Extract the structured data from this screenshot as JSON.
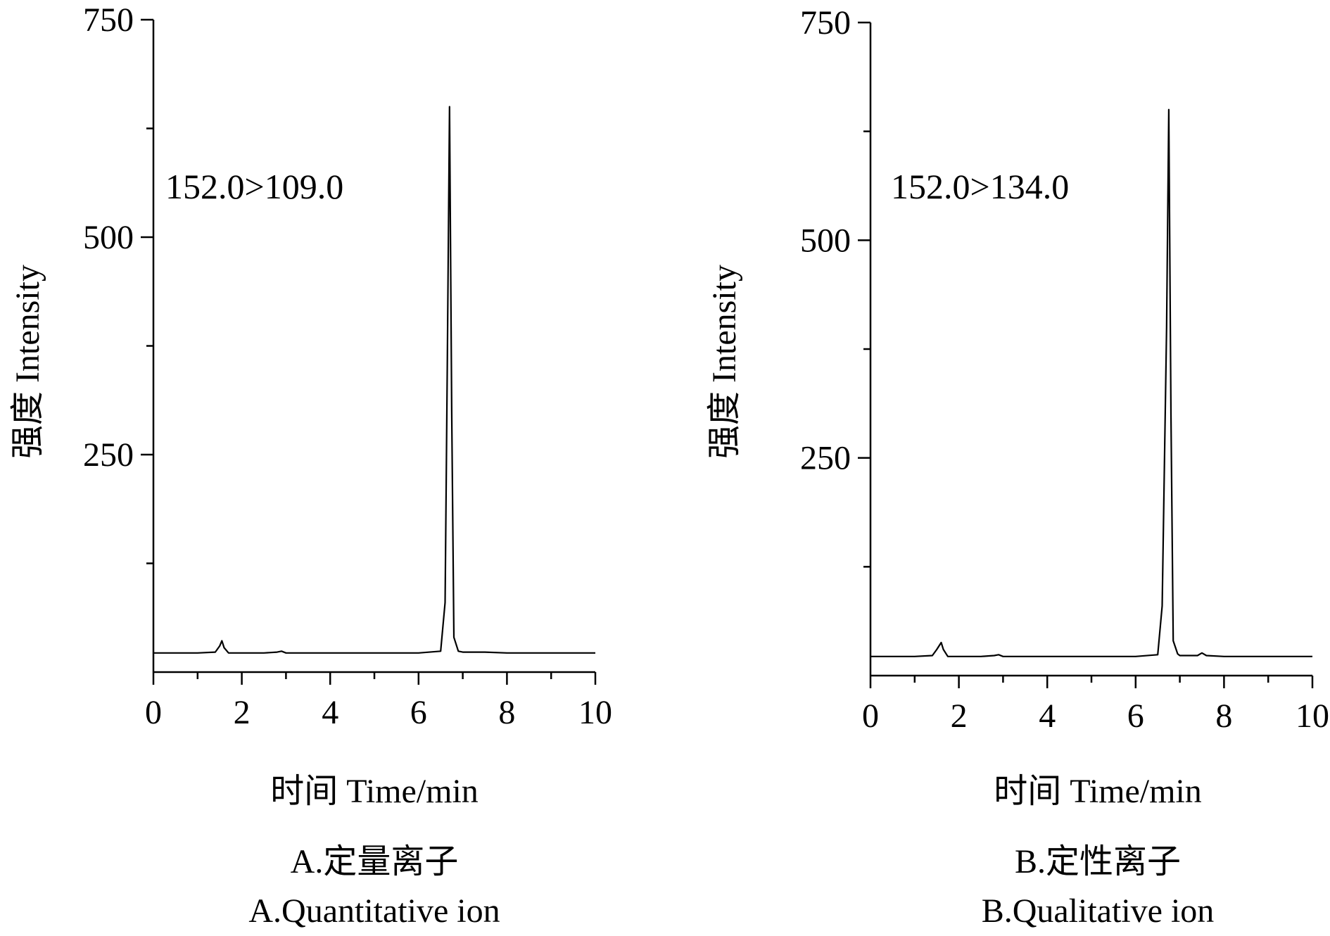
{
  "chart_data": [
    {
      "type": "line",
      "panel": "A",
      "ion_label": "152.0>109.0",
      "xlabel": "时间 Time/min",
      "ylabel": "强度 Intensity",
      "caption_cn": "A.定量离子",
      "caption_en": "A.Quantitative ion",
      "xlim": [
        0,
        10
      ],
      "ylim": [
        0,
        750
      ],
      "x_ticks": [
        0,
        2,
        4,
        6,
        8,
        10
      ],
      "y_ticks": [
        250,
        500,
        750
      ],
      "grid": false,
      "series": [
        {
          "x": [
            0,
            0.5,
            1.0,
            1.4,
            1.5,
            1.55,
            1.6,
            1.7,
            2.0,
            2.5,
            2.8,
            2.9,
            3.0,
            3.5,
            4.0,
            5.0,
            6.0,
            6.5,
            6.6,
            6.65,
            6.7,
            6.75,
            6.8,
            6.9,
            7.0,
            7.5,
            8.0,
            9.0,
            10.0
          ],
          "y": [
            22,
            22,
            22,
            23,
            30,
            36,
            28,
            22,
            22,
            22,
            23,
            24,
            22,
            22,
            22,
            22,
            22,
            24,
            80,
            350,
            650,
            300,
            40,
            24,
            23,
            23,
            22,
            22,
            22
          ]
        }
      ]
    },
    {
      "type": "line",
      "panel": "B",
      "ion_label": "152.0>134.0",
      "xlabel": "时间 Time/min",
      "ylabel": "强度 Intensity",
      "caption_cn": "B.定性离子",
      "caption_en": "B.Qualitative ion",
      "xlim": [
        0,
        10
      ],
      "ylim": [
        0,
        750
      ],
      "x_ticks": [
        0,
        2,
        4,
        6,
        8,
        10
      ],
      "y_ticks": [
        250,
        500,
        750
      ],
      "grid": false,
      "series": [
        {
          "x": [
            0,
            0.5,
            1.0,
            1.4,
            1.5,
            1.6,
            1.65,
            1.75,
            2.0,
            2.5,
            2.8,
            2.9,
            3.0,
            3.5,
            4.0,
            5.0,
            6.0,
            6.5,
            6.6,
            6.7,
            6.75,
            6.8,
            6.85,
            6.95,
            7.0,
            7.4,
            7.5,
            7.6,
            8.0,
            9.0,
            10.0
          ],
          "y": [
            22,
            22,
            22,
            23,
            30,
            38,
            30,
            22,
            22,
            22,
            23,
            24,
            22,
            22,
            22,
            22,
            22,
            24,
            80,
            400,
            650,
            300,
            40,
            25,
            23,
            23,
            26,
            23,
            22,
            22,
            22
          ]
        }
      ]
    }
  ]
}
